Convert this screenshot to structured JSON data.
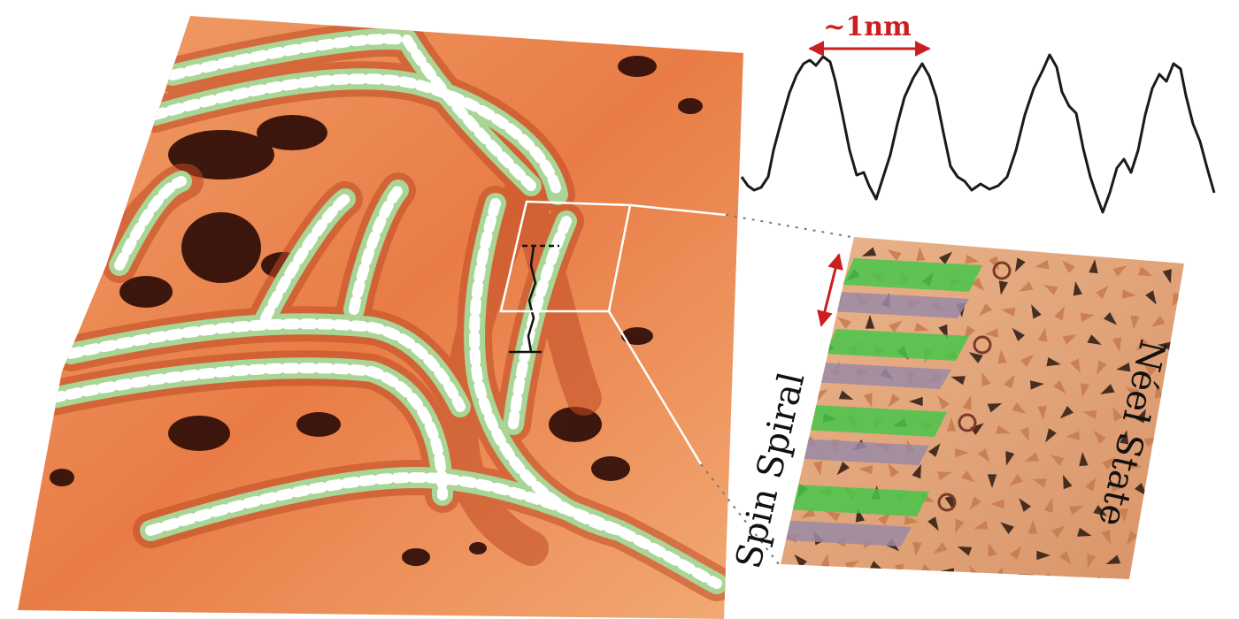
{
  "figure": {
    "scale_label": "~1nm",
    "left_label": "Spin Spiral",
    "right_label": "Néel State"
  },
  "colors": {
    "background": "#ffffff",
    "surface_light": "#f2a26c",
    "surface_mid": "#e4703f",
    "surface_dark": "#1c0606",
    "stripe_green": "#a9d596",
    "stripe_white": "#ffffff",
    "annotation_red": "#cc1f1f",
    "profile_line": "#1a1a1a",
    "inset_bg": "#e3a57d",
    "spin_green": "#46c64a",
    "spin_purple": "#9a8aa6",
    "cone_dark": "#2a1a12"
  }
}
